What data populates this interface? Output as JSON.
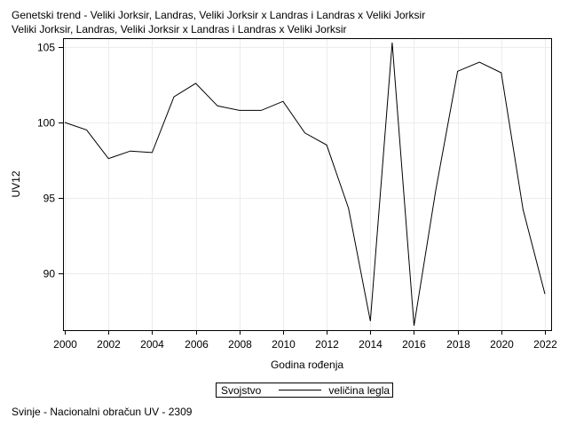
{
  "title_line1": "Genetski trend - Veliki Jorksir, Landras, Veliki Jorksir x Landras i Landras x Veliki Jorksir",
  "title_line2": "Veliki Jorksir, Landras, Veliki Jorksir x Landras i Landras x Veliki Jorksir",
  "footer": "Svinje - Nacionalni obračun UV - 2309",
  "legend": {
    "title": "Svojstvo",
    "series_name": "veličina legla"
  },
  "chart_data": {
    "type": "line",
    "title": "Genetski trend - Veliki Jorksir, Landras, Veliki Jorksir x Landras i Landras x Veliki Jorksir",
    "xlabel": "Godina rođenja",
    "ylabel": "UV12",
    "xlim": [
      2000,
      2022
    ],
    "ylim": [
      86.2,
      105.6
    ],
    "xticks": [
      2000,
      2002,
      2004,
      2006,
      2008,
      2010,
      2012,
      2014,
      2016,
      2018,
      2020,
      2022
    ],
    "yticks": [
      90,
      95,
      100,
      105
    ],
    "grid": true,
    "legend_position": "bottom",
    "line_color": "#000000",
    "series": [
      {
        "name": "veličina legla",
        "x": [
          2000,
          2001,
          2002,
          2003,
          2004,
          2005,
          2006,
          2007,
          2008,
          2009,
          2010,
          2011,
          2012,
          2013,
          2014,
          2015,
          2016,
          2017,
          2018,
          2019,
          2020,
          2021,
          2022
        ],
        "values": [
          100.0,
          99.5,
          97.6,
          98.1,
          98.0,
          101.7,
          102.6,
          101.1,
          100.8,
          100.8,
          101.4,
          99.3,
          98.5,
          94.3,
          86.8,
          105.3,
          86.5,
          95.5,
          103.4,
          104.0,
          103.3,
          94.2,
          88.6
        ]
      }
    ]
  }
}
